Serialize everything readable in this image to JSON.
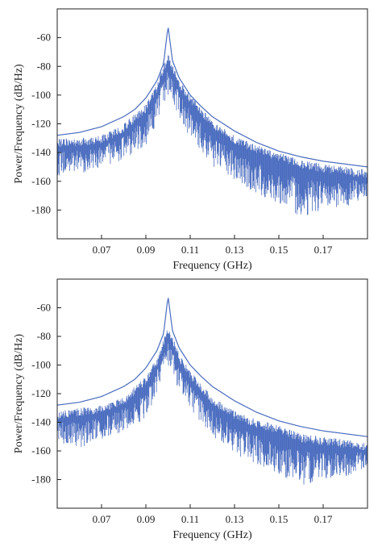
{
  "chart_data": [
    {
      "type": "line",
      "panel": "top",
      "xlabel": "Frequency (GHz)",
      "ylabel": "Power/Frequency (dB/Hz)",
      "xlim": [
        0.05,
        0.19
      ],
      "ylim": [
        -200,
        -40
      ],
      "xticks": [
        "0.07",
        "0.09",
        "0.11",
        "0.13",
        "0.15",
        "0.17"
      ],
      "yticks": [
        "-60",
        "-80",
        "-100",
        "-120",
        "-140",
        "-160",
        "-180"
      ],
      "grid": false,
      "line_color": "#4a6cbf",
      "series": [
        {
          "kind": "envelope",
          "x": [
            0.05,
            0.06,
            0.07,
            0.08,
            0.085,
            0.09,
            0.095,
            0.098,
            0.1,
            0.102,
            0.105,
            0.11,
            0.115,
            0.12,
            0.13,
            0.14,
            0.15,
            0.16,
            0.17,
            0.18,
            0.19
          ],
          "y": [
            -128,
            -126,
            -122,
            -115,
            -110,
            -102,
            -90,
            -78,
            -52,
            -76,
            -88,
            -100,
            -108,
            -115,
            -125,
            -133,
            -139,
            -143,
            -146,
            -148,
            -150
          ]
        },
        {
          "kind": "spectrum",
          "x": [
            0.05,
            0.06,
            0.07,
            0.08,
            0.09,
            0.095,
            0.1,
            0.105,
            0.11,
            0.12,
            0.13,
            0.14,
            0.15,
            0.16,
            0.17,
            0.18,
            0.19
          ],
          "y_top": [
            -130,
            -130,
            -128,
            -120,
            -106,
            -92,
            -70,
            -90,
            -100,
            -118,
            -128,
            -135,
            -140,
            -145,
            -148,
            -150,
            -152
          ],
          "y_bottom": [
            -156,
            -155,
            -150,
            -145,
            -135,
            -120,
            -100,
            -115,
            -130,
            -150,
            -160,
            -170,
            -175,
            -185,
            -180,
            -178,
            -170
          ]
        }
      ]
    },
    {
      "type": "line",
      "panel": "bottom",
      "xlabel": "Frequency (GHz)",
      "ylabel": "Power/Frequency (dB/Hz)",
      "xlim": [
        0.05,
        0.19
      ],
      "ylim": [
        -200,
        -40
      ],
      "xticks": [
        "0.07",
        "0.09",
        "0.11",
        "0.13",
        "0.15",
        "0.17"
      ],
      "yticks": [
        "-60",
        "-80",
        "-100",
        "-120",
        "-140",
        "-160",
        "-180"
      ],
      "grid": false,
      "line_color": "#4a6cbf",
      "series": [
        {
          "kind": "envelope",
          "x": [
            0.05,
            0.06,
            0.07,
            0.08,
            0.085,
            0.09,
            0.095,
            0.098,
            0.1,
            0.102,
            0.105,
            0.11,
            0.115,
            0.12,
            0.13,
            0.14,
            0.15,
            0.16,
            0.17,
            0.18,
            0.19
          ],
          "y": [
            -128,
            -126,
            -122,
            -115,
            -110,
            -102,
            -90,
            -78,
            -52,
            -76,
            -88,
            -100,
            -108,
            -115,
            -125,
            -133,
            -139,
            -143,
            -146,
            -148,
            -150
          ]
        },
        {
          "kind": "spectrum",
          "x": [
            0.05,
            0.06,
            0.07,
            0.08,
            0.09,
            0.095,
            0.1,
            0.105,
            0.11,
            0.12,
            0.13,
            0.14,
            0.15,
            0.16,
            0.17,
            0.18,
            0.19
          ],
          "y_top": [
            -132,
            -130,
            -128,
            -122,
            -108,
            -95,
            -72,
            -92,
            -104,
            -122,
            -132,
            -138,
            -142,
            -148,
            -150,
            -152,
            -154
          ],
          "y_bottom": [
            -154,
            -158,
            -152,
            -146,
            -138,
            -120,
            -100,
            -118,
            -132,
            -150,
            -162,
            -170,
            -176,
            -184,
            -180,
            -178,
            -172
          ]
        }
      ]
    }
  ]
}
